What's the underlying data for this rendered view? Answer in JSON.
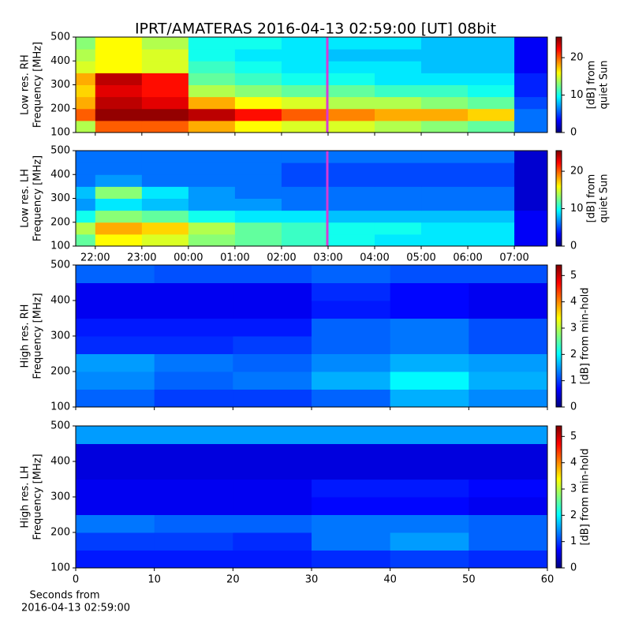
{
  "chart_data": [
    {
      "type": "heatmap",
      "title": "IPRT/AMATERAS 2016-04-13 02:59:00 [UT]   08bit",
      "ylabel": [
        "Low res. RH",
        "Frequency [MHz]"
      ],
      "colorbar_label": [
        "[dB] from",
        "quiet Sun"
      ],
      "xlim": [
        -2.42,
        7.71
      ],
      "xticks": [
        -2,
        -1,
        0,
        1,
        2,
        3,
        4,
        5,
        6,
        7
      ],
      "ylim": [
        100,
        500
      ],
      "yticks": [
        100,
        200,
        300,
        400,
        500
      ],
      "clim": [
        0,
        25.5
      ],
      "cticks": [
        0,
        10,
        20
      ],
      "marker_x": 2.9833,
      "marker_color": "#d63ad6",
      "values": [
        [
          14,
          20,
          20,
          18,
          16,
          15,
          15,
          14,
          13,
          12,
          6
        ],
        [
          20,
          25,
          25,
          24,
          22,
          20,
          19,
          18,
          18,
          17,
          6
        ],
        [
          18,
          24,
          23,
          18,
          16,
          15,
          14,
          14,
          13,
          12,
          5
        ],
        [
          17,
          23,
          22,
          14,
          13,
          12,
          12,
          11,
          11,
          10,
          4
        ],
        [
          18,
          24,
          22,
          12,
          11,
          10,
          10,
          9,
          9,
          9,
          4
        ],
        [
          15,
          16,
          15,
          11,
          10,
          9,
          9,
          9,
          8,
          8,
          3
        ],
        [
          14,
          16,
          15,
          10,
          9,
          9,
          8,
          8,
          8,
          8,
          3
        ],
        [
          13,
          16,
          14,
          10,
          10,
          9,
          9,
          9,
          8,
          8,
          3
        ]
      ]
    },
    {
      "type": "heatmap",
      "ylabel": [
        "Low res. LH",
        "Frequency [MHz]"
      ],
      "colorbar_label": [
        "[dB] from",
        "quiet Sun"
      ],
      "xlim": [
        -2.42,
        7.71
      ],
      "xticks": [
        {
          "value": -2,
          "label": "22:00"
        },
        {
          "value": -1,
          "label": "23:00"
        },
        {
          "value": 0,
          "label": "00:00"
        },
        {
          "value": 1,
          "label": "01:00"
        },
        {
          "value": 2,
          "label": "02:00"
        },
        {
          "value": 3,
          "label": "03:00"
        },
        {
          "value": 4,
          "label": "04:00"
        },
        {
          "value": 5,
          "label": "05:00"
        },
        {
          "value": 6,
          "label": "06:00"
        },
        {
          "value": 7,
          "label": "07:00"
        }
      ],
      "ylim": [
        100,
        500
      ],
      "yticks": [
        100,
        200,
        300,
        400,
        500
      ],
      "clim": [
        0,
        25.5
      ],
      "cticks": [
        0,
        10,
        20
      ],
      "marker_x": 2.9833,
      "marker_color": "#d63ad6",
      "values": [
        [
          12,
          16,
          15,
          13,
          12,
          11,
          10,
          9,
          9,
          9,
          3
        ],
        [
          14,
          18,
          17,
          14,
          12,
          11,
          10,
          10,
          9,
          9,
          3
        ],
        [
          10,
          13,
          12,
          10,
          9,
          9,
          8,
          8,
          8,
          8,
          3
        ],
        [
          7,
          9,
          8,
          7,
          7,
          6,
          6,
          6,
          6,
          6,
          2
        ],
        [
          8,
          13,
          9,
          7,
          6,
          6,
          6,
          6,
          6,
          6,
          2
        ],
        [
          6,
          7,
          6,
          6,
          6,
          5,
          5,
          5,
          5,
          5,
          2
        ],
        [
          6,
          6,
          6,
          6,
          6,
          5,
          5,
          5,
          5,
          5,
          2
        ],
        [
          6,
          6,
          6,
          6,
          6,
          6,
          6,
          6,
          6,
          6,
          2
        ]
      ]
    },
    {
      "type": "heatmap",
      "ylabel": [
        "High res. RH",
        "Frequency [MHz]"
      ],
      "colorbar_label": [
        "[dB] from min-hold"
      ],
      "xlim": [
        0,
        60
      ],
      "xticks": [
        0,
        10,
        20,
        30,
        40,
        50,
        60
      ],
      "ylim": [
        100,
        500
      ],
      "yticks": [
        100,
        200,
        300,
        400,
        500
      ],
      "clim": [
        0,
        5.4
      ],
      "cticks": [
        0,
        1,
        2,
        3,
        4,
        5
      ],
      "values": [
        [
          1.2,
          1.0,
          1.0,
          1.2,
          1.6,
          1.4
        ],
        [
          1.4,
          1.2,
          1.3,
          1.6,
          2.0,
          1.6
        ],
        [
          1.5,
          1.3,
          1.2,
          1.4,
          1.6,
          1.5
        ],
        [
          0.9,
          0.9,
          1.0,
          1.2,
          1.3,
          1.1
        ],
        [
          0.8,
          0.8,
          0.8,
          1.2,
          1.3,
          1.1
        ],
        [
          0.6,
          0.6,
          0.6,
          0.8,
          0.7,
          0.6
        ],
        [
          0.6,
          0.6,
          0.6,
          0.9,
          0.7,
          0.6
        ],
        [
          1.2,
          1.1,
          1.1,
          1.2,
          1.1,
          1.1
        ]
      ]
    },
    {
      "type": "heatmap",
      "ylabel": [
        "High res. LH",
        "Frequency [MHz]"
      ],
      "colorbar_label": [
        "[dB] from min-hold"
      ],
      "xlabel": [
        "Seconds from",
        "2016-04-13 02:59:00"
      ],
      "xlim": [
        0,
        60
      ],
      "xticks": [
        0,
        10,
        20,
        30,
        40,
        50,
        60
      ],
      "ylim": [
        100,
        500
      ],
      "yticks": [
        100,
        200,
        300,
        400,
        500
      ],
      "clim": [
        0,
        5.4
      ],
      "cticks": [
        0,
        1,
        2,
        3,
        4,
        5
      ],
      "values": [
        [
          0.8,
          0.8,
          0.8,
          0.9,
          1.0,
          0.9
        ],
        [
          1.0,
          1.0,
          0.9,
          1.3,
          1.5,
          1.2
        ],
        [
          1.3,
          1.2,
          1.2,
          1.3,
          1.3,
          1.2
        ],
        [
          0.6,
          0.6,
          0.6,
          0.7,
          0.7,
          0.6
        ],
        [
          0.6,
          0.6,
          0.6,
          0.8,
          0.8,
          0.7
        ],
        [
          0.5,
          0.5,
          0.5,
          0.5,
          0.5,
          0.5
        ],
        [
          0.5,
          0.5,
          0.5,
          0.5,
          0.5,
          0.5
        ],
        [
          1.5,
          1.5,
          1.5,
          1.5,
          1.5,
          1.5
        ]
      ]
    }
  ]
}
